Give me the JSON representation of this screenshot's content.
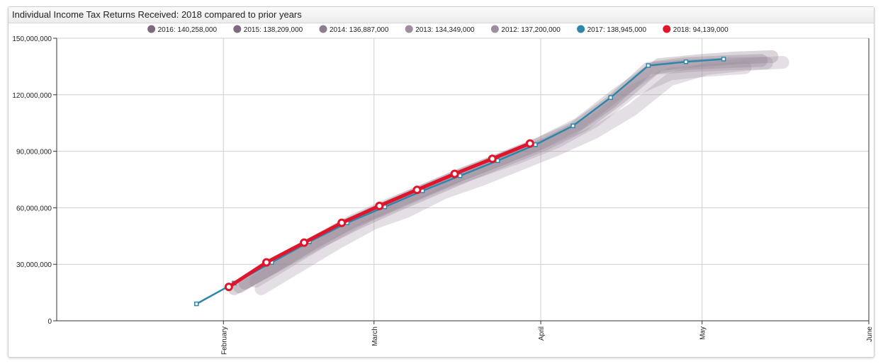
{
  "window": {
    "title": "Individual Income Tax Returns Received: 2018 compared to prior years"
  },
  "chart_data": {
    "type": "line",
    "title": "Individual Income Tax Returns Received: 2018 compared to prior years",
    "xlabel": "",
    "ylabel": "",
    "x_ticks": [
      "February",
      "March",
      "April",
      "May",
      "June"
    ],
    "y_ticks": [
      "0",
      "30,000,000",
      "60,000,000",
      "90,000,000",
      "120,000,000",
      "150,000,000"
    ],
    "xlim": [
      "2018-01-01",
      "2018-06-01"
    ],
    "ylim": [
      0,
      150000000
    ],
    "grid": true,
    "legend_position": "top",
    "series": [
      {
        "name": "2016",
        "legend_label": "2016: 140,258,000",
        "color": "#7d6b7d",
        "style": "wide-translucent",
        "points": [
          [
            "2018-02-05",
            20000000
          ],
          [
            "2018-02-12",
            31000000
          ],
          [
            "2018-02-19",
            42000000
          ],
          [
            "2018-02-26",
            52000000
          ],
          [
            "2018-03-05",
            61000000
          ],
          [
            "2018-03-12",
            69500000
          ],
          [
            "2018-03-19",
            78000000
          ],
          [
            "2018-03-26",
            86000000
          ],
          [
            "2018-04-02",
            94000000
          ],
          [
            "2018-04-09",
            104000000
          ],
          [
            "2018-04-16",
            119000000
          ],
          [
            "2018-04-23",
            136000000
          ],
          [
            "2018-04-30",
            138000000
          ],
          [
            "2018-05-07",
            139500000
          ],
          [
            "2018-05-14",
            140258000
          ]
        ]
      },
      {
        "name": "2015",
        "legend_label": "2015: 138,209,000",
        "color": "#7d6b7d",
        "style": "wide-translucent",
        "points": [
          [
            "2018-02-03",
            17000000
          ],
          [
            "2018-02-10",
            28000000
          ],
          [
            "2018-02-17",
            40000000
          ],
          [
            "2018-02-24",
            51000000
          ],
          [
            "2018-03-03",
            60000000
          ],
          [
            "2018-03-10",
            69000000
          ],
          [
            "2018-03-17",
            77500000
          ],
          [
            "2018-03-24",
            85000000
          ],
          [
            "2018-03-31",
            93000000
          ],
          [
            "2018-04-07",
            102000000
          ],
          [
            "2018-04-14",
            116000000
          ],
          [
            "2018-04-21",
            134000000
          ],
          [
            "2018-04-28",
            136500000
          ],
          [
            "2018-05-05",
            137500000
          ],
          [
            "2018-05-12",
            138209000
          ]
        ]
      },
      {
        "name": "2014",
        "legend_label": "2014: 136,887,000",
        "color": "#8d7d8d",
        "style": "wide-translucent",
        "points": [
          [
            "2018-02-04",
            18000000
          ],
          [
            "2018-02-11",
            30000000
          ],
          [
            "2018-02-18",
            42000000
          ],
          [
            "2018-02-25",
            53000000
          ],
          [
            "2018-03-04",
            62000000
          ],
          [
            "2018-03-11",
            70000000
          ],
          [
            "2018-03-18",
            78500000
          ],
          [
            "2018-03-25",
            86500000
          ],
          [
            "2018-04-01",
            94500000
          ],
          [
            "2018-04-08",
            104500000
          ],
          [
            "2018-04-15",
            120000000
          ],
          [
            "2018-04-22",
            134000000
          ],
          [
            "2018-04-29",
            135500000
          ],
          [
            "2018-05-06",
            136300000
          ],
          [
            "2018-05-13",
            136887000
          ]
        ]
      },
      {
        "name": "2013",
        "legend_label": "2013: 134,349,000",
        "color": "#9d8d9d",
        "style": "wide-translucent",
        "points": [
          [
            "2018-02-07",
            21000000
          ],
          [
            "2018-02-14",
            33000000
          ],
          [
            "2018-02-21",
            45000000
          ],
          [
            "2018-02-28",
            56000000
          ],
          [
            "2018-03-07",
            64500000
          ],
          [
            "2018-03-14",
            73000000
          ],
          [
            "2018-03-21",
            80000000
          ],
          [
            "2018-03-28",
            87000000
          ],
          [
            "2018-04-04",
            95000000
          ],
          [
            "2018-04-11",
            106000000
          ],
          [
            "2018-04-18",
            122000000
          ],
          [
            "2018-04-25",
            131000000
          ],
          [
            "2018-05-02",
            133000000
          ],
          [
            "2018-05-09",
            134349000
          ]
        ]
      },
      {
        "name": "2012",
        "legend_label": "2012: 137,200,000",
        "color": "#9d8d9d",
        "style": "wide-translucent",
        "points": [
          [
            "2018-02-08",
            17000000
          ],
          [
            "2018-02-15",
            29000000
          ],
          [
            "2018-02-22",
            41000000
          ],
          [
            "2018-02-29",
            52000000
          ],
          [
            "2018-03-07",
            58000000
          ],
          [
            "2018-03-14",
            68000000
          ],
          [
            "2018-03-21",
            75000000
          ],
          [
            "2018-03-28",
            83000000
          ],
          [
            "2018-04-04",
            91000000
          ],
          [
            "2018-04-11",
            100000000
          ],
          [
            "2018-04-18",
            112000000
          ],
          [
            "2018-04-25",
            128000000
          ],
          [
            "2018-05-02",
            134000000
          ],
          [
            "2018-05-09",
            136000000
          ],
          [
            "2018-05-16",
            137200000
          ]
        ]
      },
      {
        "name": "2017",
        "legend_label": "2017: 138,945,000",
        "color": "#2e86ab",
        "style": "thin",
        "points": [
          [
            "2018-01-27",
            9000000
          ],
          [
            "2018-02-03",
            20000000
          ],
          [
            "2018-02-10",
            31000000
          ],
          [
            "2018-02-17",
            42000000
          ],
          [
            "2018-02-24",
            52000000
          ],
          [
            "2018-03-03",
            60500000
          ],
          [
            "2018-03-10",
            69000000
          ],
          [
            "2018-03-17",
            77000000
          ],
          [
            "2018-03-24",
            85000000
          ],
          [
            "2018-03-31",
            93500000
          ],
          [
            "2018-04-07",
            103500000
          ],
          [
            "2018-04-14",
            118500000
          ],
          [
            "2018-04-21",
            135500000
          ],
          [
            "2018-04-28",
            137500000
          ],
          [
            "2018-05-05",
            138945000
          ]
        ]
      },
      {
        "name": "2018",
        "legend_label": "2018: 94,139,000",
        "color": "#e0142a",
        "style": "thick",
        "points": [
          [
            "2018-02-02",
            18000000
          ],
          [
            "2018-02-09",
            31000000
          ],
          [
            "2018-02-16",
            41500000
          ],
          [
            "2018-02-23",
            52000000
          ],
          [
            "2018-03-02",
            61000000
          ],
          [
            "2018-03-09",
            69500000
          ],
          [
            "2018-03-16",
            78000000
          ],
          [
            "2018-03-23",
            86000000
          ],
          [
            "2018-03-30",
            94139000
          ]
        ]
      }
    ]
  }
}
